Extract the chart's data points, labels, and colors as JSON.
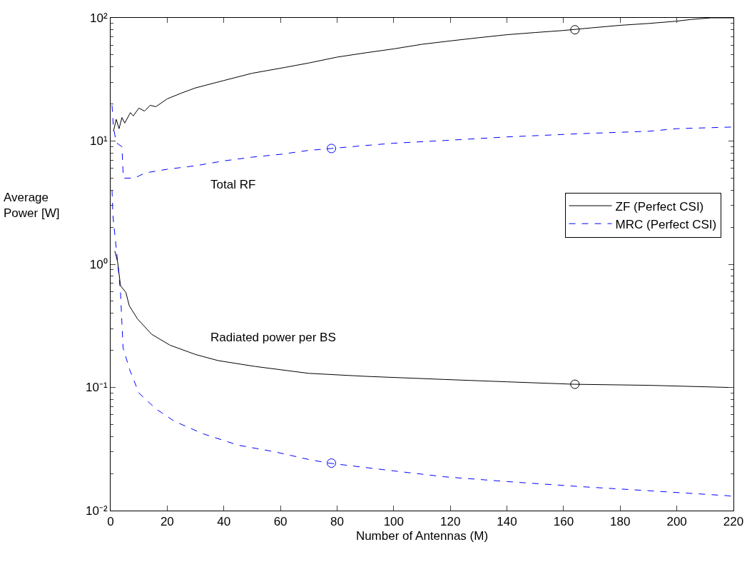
{
  "chart_data": {
    "type": "line",
    "xlabel": "Number of Antennas (M)",
    "ylabel": "Average Power [W]",
    "log": "y",
    "xlim": [
      0,
      220
    ],
    "xticks": [
      0,
      20,
      40,
      60,
      80,
      100,
      120,
      140,
      160,
      180,
      200,
      220
    ],
    "ylim": [
      0.01,
      100
    ],
    "yticks": [
      {
        "value": 0.01,
        "label": "10⁻²"
      },
      {
        "value": 0.1,
        "label": "10⁻¹"
      },
      {
        "value": 1,
        "label": "10⁰"
      },
      {
        "value": 10,
        "label": "10¹"
      },
      {
        "value": 100,
        "label": "10²"
      }
    ],
    "legend": "right",
    "marker": "none",
    "series": [
      {
        "name": "ZF (Perfect CSI)",
        "color": "#000000",
        "line_style": "solid",
        "x": [
          1,
          2,
          3,
          4,
          5,
          7,
          8,
          10,
          12,
          14,
          16,
          20,
          25,
          30,
          40,
          50,
          60,
          70,
          80,
          90,
          100,
          110,
          120,
          130,
          140,
          150,
          160,
          170,
          180,
          190,
          200,
          205,
          212,
          220
        ],
        "values": [
          12,
          15,
          12.6,
          15.5,
          14,
          17,
          16,
          18.5,
          17.5,
          19.5,
          19,
          22,
          24.5,
          27,
          31,
          35.5,
          39,
          43,
          48,
          52,
          56,
          61,
          65,
          69,
          73,
          76,
          79,
          83,
          87,
          90,
          94,
          97,
          100,
          100
        ]
      },
      {
        "name": "MRC (Perfect CSI)",
        "color": "#0000ff",
        "line_style": "dashed",
        "x": [
          0.5,
          1,
          2,
          4,
          4.5,
          8,
          10,
          12,
          20,
          30,
          40,
          50,
          60,
          70,
          78,
          90,
          100,
          118,
          140,
          167,
          190,
          200,
          220
        ],
        "values": [
          19.5,
          13,
          9.7,
          9,
          5,
          5,
          5.2,
          5.5,
          5.9,
          6.3,
          6.9,
          7.4,
          7.8,
          8.4,
          8.7,
          9.2,
          9.6,
          10.1,
          10.8,
          11.5,
          12,
          12.6,
          13
        ]
      },
      {
        "color": "#000000",
        "line_style": "solid",
        "x": [
          1.5,
          2.5,
          3.5,
          5.4,
          6.6,
          9.5,
          14.5,
          21,
          30,
          38,
          51,
          70,
          90,
          118,
          140,
          164,
          190,
          218,
          220
        ],
        "values": [
          1.28,
          1.04,
          0.67,
          0.59,
          0.46,
          0.36,
          0.27,
          0.22,
          0.185,
          0.165,
          0.148,
          0.13,
          0.123,
          0.116,
          0.111,
          0.106,
          0.104,
          0.1,
          0.1
        ]
      },
      {
        "color": "#0000ff",
        "line_style": "dashed",
        "x": [
          0.5,
          0.8,
          2.5,
          3.5,
          4.4,
          6.7,
          10,
          16,
          22.6,
          32.7,
          45,
          58,
          70,
          77,
          100,
          118,
          140,
          167,
          190,
          218,
          220
        ],
        "values": [
          4,
          2.5,
          1.04,
          0.59,
          0.21,
          0.14,
          0.09,
          0.067,
          0.053,
          0.042,
          0.034,
          0.03,
          0.026,
          0.0243,
          0.021,
          0.0188,
          0.0172,
          0.0156,
          0.0145,
          0.0132,
          0.013
        ]
      },
      {
        "type": "scatter",
        "marker": "circle",
        "color": "#000000",
        "x": [
          164,
          164
        ],
        "values": [
          80,
          0.106
        ]
      },
      {
        "type": "scatter",
        "marker": "circle",
        "color": "#0000ff",
        "x": [
          78,
          78
        ],
        "values": [
          8.7,
          0.0243
        ]
      }
    ],
    "annotations": [
      "Total RF",
      "Radiated power per BS"
    ]
  }
}
